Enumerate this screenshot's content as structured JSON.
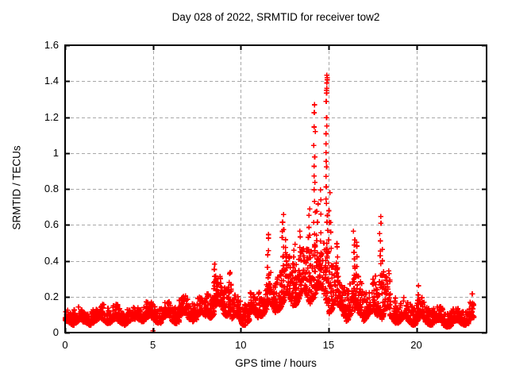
{
  "page": {
    "background_color": "#ffffff",
    "kind": "gnuplot-style scatter chart screenshot"
  },
  "chart_data": {
    "type": "scatter",
    "title": "Day 028 of 2022, SRMTID for receiver tow2",
    "xlabel": "GPS time / hours",
    "ylabel": "SRMTID / TECUs",
    "xlim": [
      0,
      24
    ],
    "ylim": [
      0,
      1.6
    ],
    "xticks": [
      0,
      5,
      10,
      15,
      20
    ],
    "yticks": [
      0,
      0.2,
      0.4,
      0.6,
      0.8,
      1,
      1.2,
      1.4,
      1.6
    ],
    "xtick_labels": [
      "0",
      "5",
      "10",
      "15",
      "20"
    ],
    "ytick_labels": [
      "0",
      "0.2",
      "0.4",
      "0.6",
      "0.8",
      "1",
      "1.2",
      "1.4",
      "1.6"
    ],
    "grid": true,
    "grid_style": "dashed",
    "grid_color": "#a8a8a8",
    "border_color": "#000000",
    "marker": {
      "shape": "plus",
      "color": "#ff0000",
      "size": 7
    },
    "legend": null,
    "data_time_span_hours": [
      0,
      23.3
    ],
    "peak": {
      "x": 14.9,
      "y": 1.42
    },
    "notable_features": [
      "baseline noise band roughly 0.05-0.2 TECUs across the whole day",
      "activity bumps near hours 8.5 and 9.3 reaching ~0.35",
      "broad disturbed period hours 11.5-18 with many spikes 0.4-0.7",
      "tall narrow spike columns at ~14.2 (to ~1.27) and ~14.9 (to ~1.42)",
      "isolated near-zero point at hour 5",
      "quiet tail after hour 20 around 0.05-0.15"
    ],
    "baseline_envelope_bins": [
      [
        0.0,
        0.5,
        0.04,
        0.13
      ],
      [
        0.5,
        1.0,
        0.05,
        0.16
      ],
      [
        1.0,
        1.5,
        0.04,
        0.12
      ],
      [
        1.5,
        2.0,
        0.05,
        0.15
      ],
      [
        2.0,
        2.5,
        0.05,
        0.17
      ],
      [
        2.5,
        3.0,
        0.05,
        0.16
      ],
      [
        3.0,
        3.5,
        0.04,
        0.14
      ],
      [
        3.5,
        4.0,
        0.05,
        0.15
      ],
      [
        4.0,
        4.5,
        0.06,
        0.17
      ],
      [
        4.5,
        5.0,
        0.06,
        0.19
      ],
      [
        5.0,
        5.5,
        0.05,
        0.16
      ],
      [
        5.5,
        6.0,
        0.06,
        0.2
      ],
      [
        6.0,
        6.5,
        0.05,
        0.17
      ],
      [
        6.5,
        7.0,
        0.07,
        0.22
      ],
      [
        7.0,
        7.5,
        0.06,
        0.2
      ],
      [
        7.5,
        8.0,
        0.07,
        0.22
      ],
      [
        8.0,
        8.5,
        0.08,
        0.28
      ],
      [
        8.5,
        9.0,
        0.1,
        0.34
      ],
      [
        9.0,
        9.5,
        0.09,
        0.3
      ],
      [
        9.5,
        10.0,
        0.05,
        0.22
      ],
      [
        10.0,
        10.5,
        0.04,
        0.2
      ],
      [
        10.5,
        11.0,
        0.07,
        0.24
      ],
      [
        11.0,
        11.5,
        0.09,
        0.28
      ],
      [
        11.5,
        12.0,
        0.1,
        0.34
      ],
      [
        12.0,
        12.5,
        0.12,
        0.4
      ],
      [
        12.5,
        13.0,
        0.14,
        0.45
      ],
      [
        13.0,
        13.5,
        0.15,
        0.48
      ],
      [
        13.5,
        14.0,
        0.15,
        0.5
      ],
      [
        14.0,
        14.5,
        0.18,
        0.55
      ],
      [
        14.5,
        15.0,
        0.15,
        0.55
      ],
      [
        15.0,
        15.5,
        0.1,
        0.45
      ],
      [
        15.5,
        16.0,
        0.08,
        0.38
      ],
      [
        16.0,
        16.5,
        0.06,
        0.32
      ],
      [
        16.5,
        17.0,
        0.08,
        0.38
      ],
      [
        17.0,
        17.5,
        0.06,
        0.28
      ],
      [
        17.5,
        18.0,
        0.08,
        0.35
      ],
      [
        18.0,
        18.5,
        0.06,
        0.38
      ],
      [
        18.5,
        19.0,
        0.05,
        0.24
      ],
      [
        19.0,
        19.5,
        0.05,
        0.2
      ],
      [
        19.5,
        20.0,
        0.04,
        0.18
      ],
      [
        20.0,
        20.5,
        0.05,
        0.2
      ],
      [
        20.5,
        21.0,
        0.04,
        0.16
      ],
      [
        21.0,
        21.5,
        0.04,
        0.15
      ],
      [
        21.5,
        22.0,
        0.03,
        0.13
      ],
      [
        22.0,
        22.5,
        0.04,
        0.14
      ],
      [
        22.5,
        23.0,
        0.04,
        0.15
      ],
      [
        23.0,
        23.3,
        0.05,
        0.18
      ]
    ],
    "spike_columns": [
      [
        8.5,
        7,
        0.2,
        0.38
      ],
      [
        8.65,
        5,
        0.2,
        0.32
      ],
      [
        9.35,
        6,
        0.18,
        0.34
      ],
      [
        11.55,
        9,
        0.2,
        0.56
      ],
      [
        12.4,
        12,
        0.25,
        0.67
      ],
      [
        12.6,
        7,
        0.3,
        0.5
      ],
      [
        13.05,
        7,
        0.25,
        0.5
      ],
      [
        13.35,
        9,
        0.3,
        0.55
      ],
      [
        13.9,
        9,
        0.35,
        0.68
      ],
      [
        14.2,
        16,
        0.45,
        1.27
      ],
      [
        14.35,
        7,
        0.4,
        0.72
      ],
      [
        14.55,
        7,
        0.35,
        0.8
      ],
      [
        14.9,
        22,
        0.35,
        1.42
      ],
      [
        14.92,
        4,
        1.36,
        1.42
      ],
      [
        15.05,
        5,
        0.45,
        0.78
      ],
      [
        15.15,
        5,
        0.3,
        0.62
      ],
      [
        15.5,
        7,
        0.25,
        0.5
      ],
      [
        16.45,
        8,
        0.3,
        0.57
      ],
      [
        16.6,
        5,
        0.3,
        0.52
      ],
      [
        17.95,
        10,
        0.25,
        0.65
      ],
      [
        18.1,
        5,
        0.25,
        0.45
      ],
      [
        20.1,
        4,
        0.12,
        0.25
      ],
      [
        23.2,
        4,
        0.1,
        0.2
      ]
    ],
    "outlier_points": [
      [
        5.0,
        0.01
      ]
    ],
    "render_hints": {
      "points_per_hour": 112,
      "random_seed": 20220128
    }
  }
}
